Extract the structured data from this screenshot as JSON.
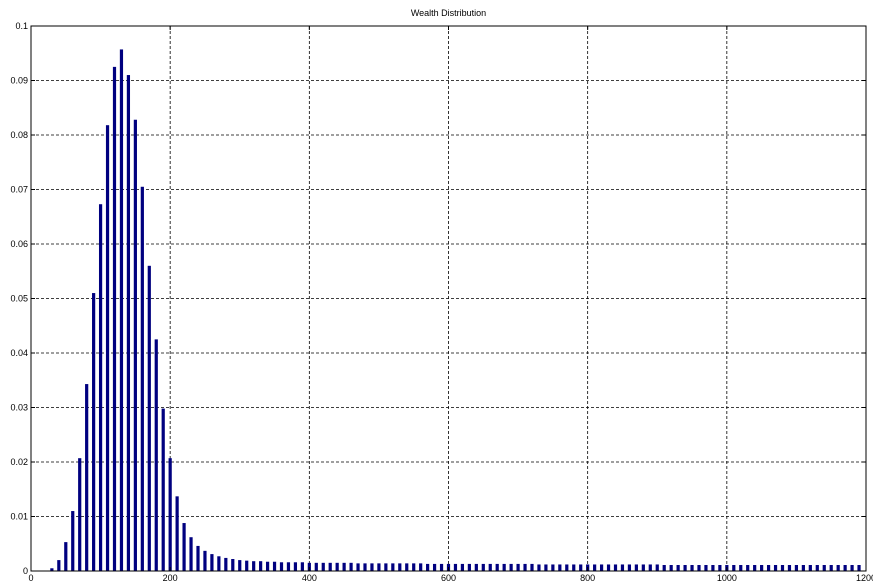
{
  "chart_data": {
    "type": "bar",
    "title": "Wealth Distribution",
    "xlabel": "",
    "ylabel": "",
    "xlim": [
      0,
      1200
    ],
    "ylim": [
      0,
      0.1
    ],
    "grid": true,
    "bar_color": "#00007f",
    "xticks": [
      0,
      200,
      400,
      600,
      800,
      1000,
      1200
    ],
    "yticks": [
      0,
      0.01,
      0.02,
      0.03,
      0.04,
      0.05,
      0.06,
      0.07,
      0.08,
      0.09,
      0.1
    ],
    "xtick_labels": [
      "0",
      "200",
      "400",
      "600",
      "800",
      "1000",
      "1200"
    ],
    "ytick_labels": [
      "0",
      "0.01",
      "0.02",
      "0.03",
      "0.04",
      "0.05",
      "0.06",
      "0.07",
      "0.08",
      "0.09",
      "0.1"
    ],
    "x": [
      30,
      40,
      50,
      60,
      70,
      80,
      90,
      100,
      110,
      120,
      130,
      140,
      150,
      160,
      170,
      180,
      190,
      200,
      210,
      220,
      230,
      240,
      250,
      260,
      270,
      280,
      290,
      300,
      310,
      320,
      330,
      340,
      350,
      360,
      370,
      380,
      390,
      400,
      410,
      420,
      430,
      440,
      450,
      460,
      470,
      480,
      490,
      500,
      510,
      520,
      530,
      540,
      550,
      560,
      570,
      580,
      590,
      600,
      610,
      620,
      630,
      640,
      650,
      660,
      670,
      680,
      690,
      700,
      710,
      720,
      730,
      740,
      750,
      760,
      770,
      780,
      790,
      800,
      810,
      820,
      830,
      840,
      850,
      860,
      870,
      880,
      890,
      900,
      910,
      920,
      930,
      940,
      950,
      960,
      970,
      980,
      990,
      1000,
      1010,
      1020,
      1030,
      1040,
      1050,
      1060,
      1070,
      1080,
      1090,
      1100,
      1110,
      1120,
      1130,
      1140,
      1150,
      1160,
      1170,
      1180,
      1190
    ],
    "values": [
      0.0005,
      0.002,
      0.0053,
      0.011,
      0.0207,
      0.0343,
      0.051,
      0.0673,
      0.0818,
      0.0925,
      0.0957,
      0.091,
      0.0828,
      0.0705,
      0.056,
      0.0425,
      0.0298,
      0.0207,
      0.0137,
      0.0088,
      0.0062,
      0.0046,
      0.0037,
      0.0031,
      0.0027,
      0.0024,
      0.0022,
      0.002,
      0.0019,
      0.0018,
      0.0018,
      0.0017,
      0.0017,
      0.0016,
      0.0016,
      0.0016,
      0.0016,
      0.0015,
      0.0015,
      0.0015,
      0.0015,
      0.0015,
      0.0015,
      0.0015,
      0.0014,
      0.0014,
      0.0014,
      0.0014,
      0.0014,
      0.0014,
      0.0014,
      0.0014,
      0.0014,
      0.0014,
      0.0013,
      0.0013,
      0.0013,
      0.0013,
      0.0013,
      0.0013,
      0.0013,
      0.0013,
      0.0013,
      0.0013,
      0.0013,
      0.0013,
      0.0013,
      0.0013,
      0.0013,
      0.0013,
      0.0012,
      0.0012,
      0.0012,
      0.0012,
      0.0012,
      0.0012,
      0.0012,
      0.0012,
      0.0012,
      0.0012,
      0.0012,
      0.0012,
      0.0012,
      0.0012,
      0.0012,
      0.0012,
      0.0012,
      0.0012,
      0.0011,
      0.0011,
      0.0011,
      0.0011,
      0.0011,
      0.0011,
      0.0011,
      0.0011,
      0.0011,
      0.0011,
      0.0011,
      0.0011,
      0.0011,
      0.0011,
      0.0011,
      0.0011,
      0.0011,
      0.0011,
      0.0011,
      0.0011,
      0.0011,
      0.0011,
      0.0011,
      0.0011,
      0.0011,
      0.0011,
      0.0011,
      0.0011,
      0.0011
    ]
  }
}
